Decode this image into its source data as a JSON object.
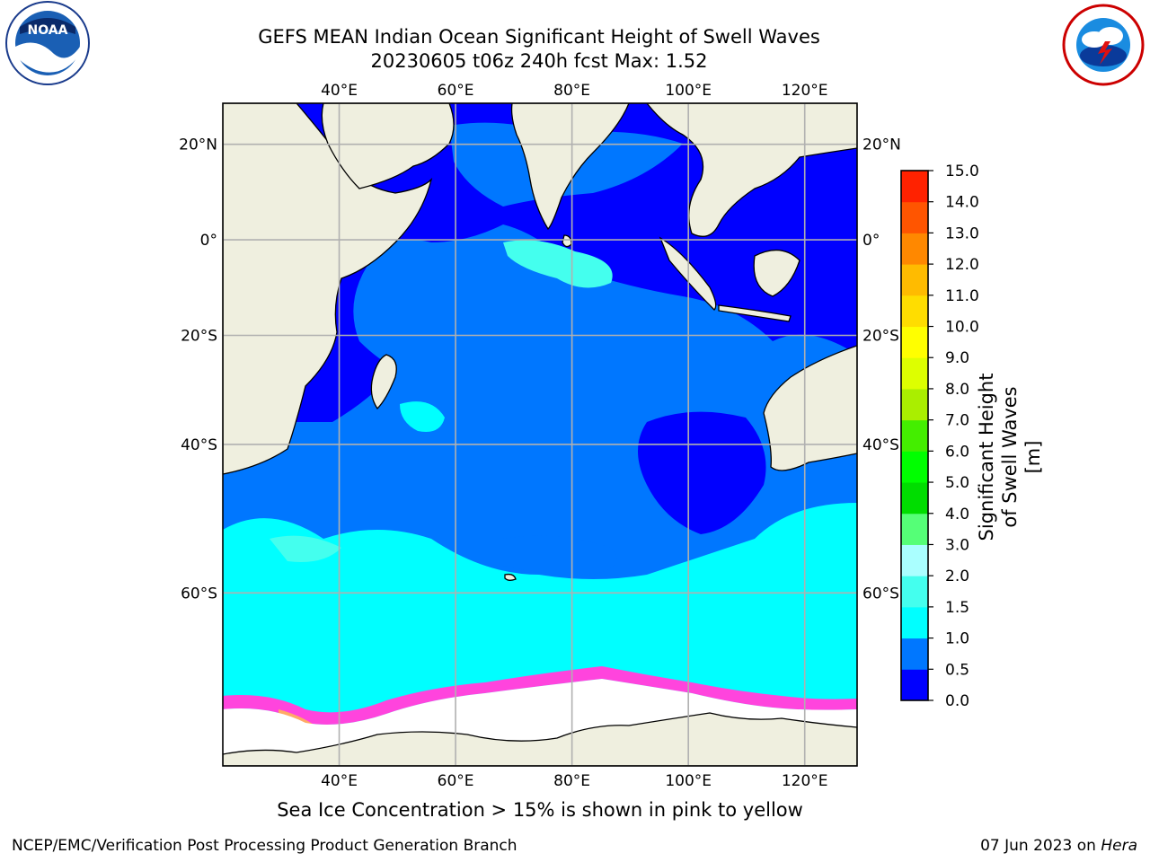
{
  "title": {
    "line1": "GEFS MEAN Indian Ocean Significant Height of Swell Waves",
    "line2": "20230605 t06z 240h fcst   Max: 1.52"
  },
  "map": {
    "lon_range": [
      20,
      129
    ],
    "lat_range": [
      -74,
      28
    ],
    "lon_ticks": [
      "40°E",
      "60°E",
      "80°E",
      "100°E",
      "120°E"
    ],
    "lat_ticks": [
      "20°N",
      "0°",
      "20°S",
      "40°S",
      "60°S"
    ],
    "gridlines": true
  },
  "colorbar": {
    "title": "Significant Height of Swell Waves [m]",
    "levels": [
      "0.0",
      "0.5",
      "1.0",
      "1.5",
      "2.0",
      "3.0",
      "4.0",
      "5.0",
      "6.0",
      "7.0",
      "8.0",
      "9.0",
      "10.0",
      "11.0",
      "12.0",
      "13.0",
      "14.0",
      "15.0"
    ],
    "colors": [
      "#0000ff",
      "#0077ff",
      "#00ffff",
      "#44ffee",
      "#aaffff",
      "#55ff77",
      "#00dd00",
      "#00ff00",
      "#44ee00",
      "#aaee00",
      "#ddff00",
      "#ffff00",
      "#ffdd00",
      "#ffbb00",
      "#ff8800",
      "#ff5500",
      "#ff2200"
    ]
  },
  "caption": "Sea Ice Concentration > 15% is shown in pink to yellow",
  "footer": {
    "left": "NCEP/EMC/Verification Post Processing Product Generation Branch",
    "date": "07 Jun 2023 on ",
    "machine": "Hera"
  },
  "logos": {
    "left": "NOAA",
    "right": "NATIONAL WEATHER SERVICE"
  }
}
